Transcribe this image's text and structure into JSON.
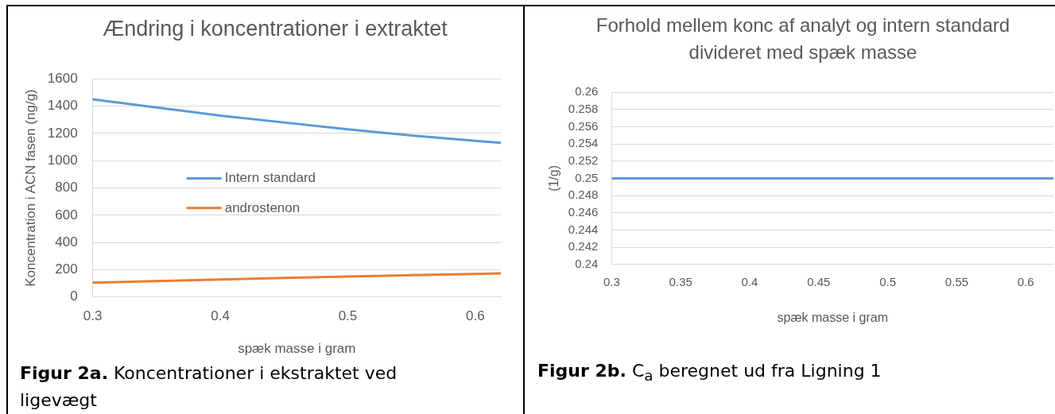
{
  "chart_data": [
    {
      "type": "line",
      "title": "Ændring i koncentrationer i extraktet",
      "xlabel": "spæk masse i gram",
      "ylabel": "Koncentration i ACN fasen (ng/g)",
      "x": [
        0.3,
        0.35,
        0.4,
        0.45,
        0.5,
        0.55,
        0.6,
        0.62
      ],
      "series": [
        {
          "name": "Intern standard",
          "color": "#5b9bd5",
          "values": [
            1450,
            1390,
            1330,
            1280,
            1230,
            1185,
            1145,
            1130
          ]
        },
        {
          "name": "androstenon",
          "color": "#ed7d31",
          "values": [
            105,
            117,
            128,
            140,
            150,
            160,
            169,
            173
          ]
        }
      ],
      "xlim": [
        0.3,
        0.62
      ],
      "xticks": [
        0.3,
        0.4,
        0.5,
        0.6
      ],
      "ylim": [
        0,
        1600
      ],
      "yticks": [
        0,
        200,
        400,
        600,
        800,
        1000,
        1200,
        1400,
        1600
      ],
      "grid": "y",
      "legend": "left",
      "marker": "none",
      "annotations": [
        "Figur 2a.",
        "Koncentrationer i ekstraktet ved ligevægt"
      ]
    },
    {
      "type": "line",
      "title": "Forhold mellem konc af analyt og intern standard divideret med spæk masse",
      "xlabel": "spæk masse i gram",
      "ylabel": "(1/g)",
      "x": [
        0.3,
        0.62
      ],
      "series": [
        {
          "color": "#5b9bd5",
          "values": [
            0.25,
            0.25
          ]
        }
      ],
      "xlim": [
        0.3,
        0.62
      ],
      "xticks": [
        0.3,
        0.35,
        0.4,
        0.45,
        0.5,
        0.55,
        0.6
      ],
      "ylim": [
        0.24,
        0.26
      ],
      "yticks": [
        0.24,
        0.242,
        0.244,
        0.246,
        0.248,
        0.25,
        0.252,
        0.254,
        0.256,
        0.258,
        0.26
      ],
      "grid": "y",
      "marker": "none",
      "annotations": [
        "Figur 2b.",
        "C$_{a}$ beregnet ud fra Ligning 1"
      ]
    }
  ]
}
